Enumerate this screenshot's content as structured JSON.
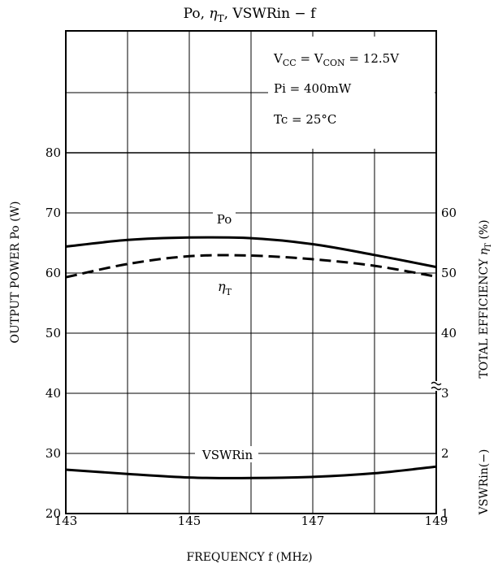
{
  "chart_data": {
    "type": "line",
    "title_parts": {
      "a": "Po, ",
      "eta": "η",
      "etasub": "T",
      "b": ", VSWRin  −  f"
    },
    "xlabel": "FREQUENCY   f   (MHz)",
    "ylabel_left": "OUTPUT POWER   Po   (W)",
    "ylabel_right_parts": {
      "a": "TOTAL EFFICIENCY   ",
      "eta": "η",
      "etasub": "T",
      "b": "   (%)"
    },
    "ylabel_right_lower": "VSWRin(−)",
    "xlim": [
      143,
      149
    ],
    "ylim_left": [
      20,
      80
    ],
    "grid": true,
    "x_ticks": [
      {
        "v": 143,
        "label": "143"
      },
      {
        "v": 145,
        "label": "145"
      },
      {
        "v": 147,
        "label": "147"
      },
      {
        "v": 149,
        "label": "149"
      }
    ],
    "left_ticks": [
      {
        "v": 20,
        "label": "20"
      },
      {
        "v": 30,
        "label": "30"
      },
      {
        "v": 40,
        "label": "40"
      },
      {
        "v": 50,
        "label": "50"
      },
      {
        "v": 60,
        "label": "60"
      },
      {
        "v": 70,
        "label": "70"
      },
      {
        "v": 80,
        "label": "80"
      }
    ],
    "right_efficiency_ticks": [
      {
        "v": 40,
        "label": "40"
      },
      {
        "v": 50,
        "label": "50"
      },
      {
        "v": 60,
        "label": "60"
      }
    ],
    "right_vswr_ticks": [
      {
        "v": 1,
        "label": "1"
      },
      {
        "v": 2,
        "label": "2"
      },
      {
        "v": 3,
        "label": "3"
      }
    ],
    "annotations": {
      "vcc": {
        "v1": "V",
        "s1": "CC",
        "eq": " = V",
        "s2": "CON",
        "rest": " = 12.5V"
      },
      "pi": "Pi = 400mW",
      "tc": "Tc = 25°C"
    },
    "series": [
      {
        "name": "Po",
        "axis": "left",
        "style": "solid",
        "x": [
          143,
          144,
          145,
          146,
          147,
          148,
          149
        ],
        "values": [
          64.4,
          65.5,
          65.9,
          65.8,
          64.8,
          63.0,
          61.0
        ]
      },
      {
        "name": "ηT",
        "axis": "right_efficiency",
        "style": "dashed",
        "x": [
          143,
          144,
          145,
          146,
          147,
          148,
          149
        ],
        "values": [
          49.3,
          51.5,
          52.8,
          52.9,
          52.3,
          51.2,
          49.4
        ]
      },
      {
        "name": "VSWRin",
        "axis": "right_vswr",
        "style": "solid",
        "x": [
          143,
          144,
          145,
          146,
          147,
          148,
          149
        ],
        "values": [
          1.73,
          1.66,
          1.6,
          1.59,
          1.61,
          1.67,
          1.78
        ]
      }
    ],
    "series_labels": {
      "po": "Po",
      "eta": "η",
      "etasub": "T",
      "vswr": "VSWRin"
    }
  }
}
